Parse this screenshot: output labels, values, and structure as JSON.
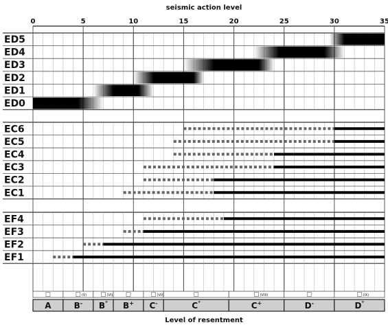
{
  "chart_data": {
    "type": "bar",
    "title": "seismic action level",
    "xlabel": "Level of resentment",
    "xlim": [
      0,
      35
    ],
    "x_ticks": [
      0,
      5,
      10,
      15,
      20,
      25,
      30,
      35
    ],
    "damage_rows": [
      {
        "label": "ED5",
        "peak_start": 31,
        "peak_end": 35,
        "fade_start": 29.5,
        "fade_end": 35
      },
      {
        "label": "ED4",
        "peak_start": 24.5,
        "peak_end": 29,
        "fade_start": 22,
        "fade_end": 31
      },
      {
        "label": "ED3",
        "peak_start": 18,
        "peak_end": 22.5,
        "fade_start": 15,
        "fade_end": 24
      },
      {
        "label": "ED2",
        "peak_start": 12,
        "peak_end": 16,
        "fade_start": 10,
        "fade_end": 17
      },
      {
        "label": "ED1",
        "peak_start": 8,
        "peak_end": 10.5,
        "fade_start": 6,
        "fade_end": 12
      },
      {
        "label": "ED0",
        "peak_start": 0,
        "peak_end": 4.5,
        "fade_start": 0,
        "fade_end": 7
      }
    ],
    "ec_rows": [
      {
        "label": "EC6",
        "dotted_start": 15,
        "solid_start": 30
      },
      {
        "label": "EC5",
        "dotted_start": 14,
        "solid_start": 30
      },
      {
        "label": "EC4",
        "dotted_start": 14,
        "solid_start": 24
      },
      {
        "label": "EC3",
        "dotted_start": 11,
        "solid_start": 24
      },
      {
        "label": "EC2",
        "dotted_start": 11,
        "solid_start": 18
      },
      {
        "label": "EC1",
        "dotted_start": 9,
        "solid_start": 18
      }
    ],
    "ef_rows": [
      {
        "label": "EF4",
        "dotted_start": 11,
        "solid_start": 19
      },
      {
        "label": "EF3",
        "dotted_start": 9,
        "solid_start": 11
      },
      {
        "label": "EF2",
        "dotted_start": 5,
        "solid_start": 7
      },
      {
        "label": "EF1",
        "dotted_start": 2,
        "solid_start": 4
      }
    ],
    "resentment_levels": [
      {
        "label": "A",
        "sup": "",
        "start": 0,
        "end": 3,
        "roman": ""
      },
      {
        "label": "B",
        "sup": "-",
        "start": 3,
        "end": 6,
        "roman": "(V)"
      },
      {
        "label": "B",
        "sup": "°",
        "start": 6,
        "end": 8,
        "roman": "(VI)"
      },
      {
        "label": "B",
        "sup": "+",
        "start": 8,
        "end": 11,
        "roman": ""
      },
      {
        "label": "C",
        "sup": "-",
        "start": 11,
        "end": 13,
        "roman": "(VII)"
      },
      {
        "label": "C",
        "sup": "°",
        "start": 13,
        "end": 19.5,
        "roman": ""
      },
      {
        "label": "C",
        "sup": "+",
        "start": 19.5,
        "end": 25,
        "roman": "(VIII)"
      },
      {
        "label": "D",
        "sup": "-",
        "start": 25,
        "end": 30,
        "roman": ""
      },
      {
        "label": "D",
        "sup": "°",
        "start": 30,
        "end": 35,
        "roman": "(IX)"
      }
    ]
  }
}
